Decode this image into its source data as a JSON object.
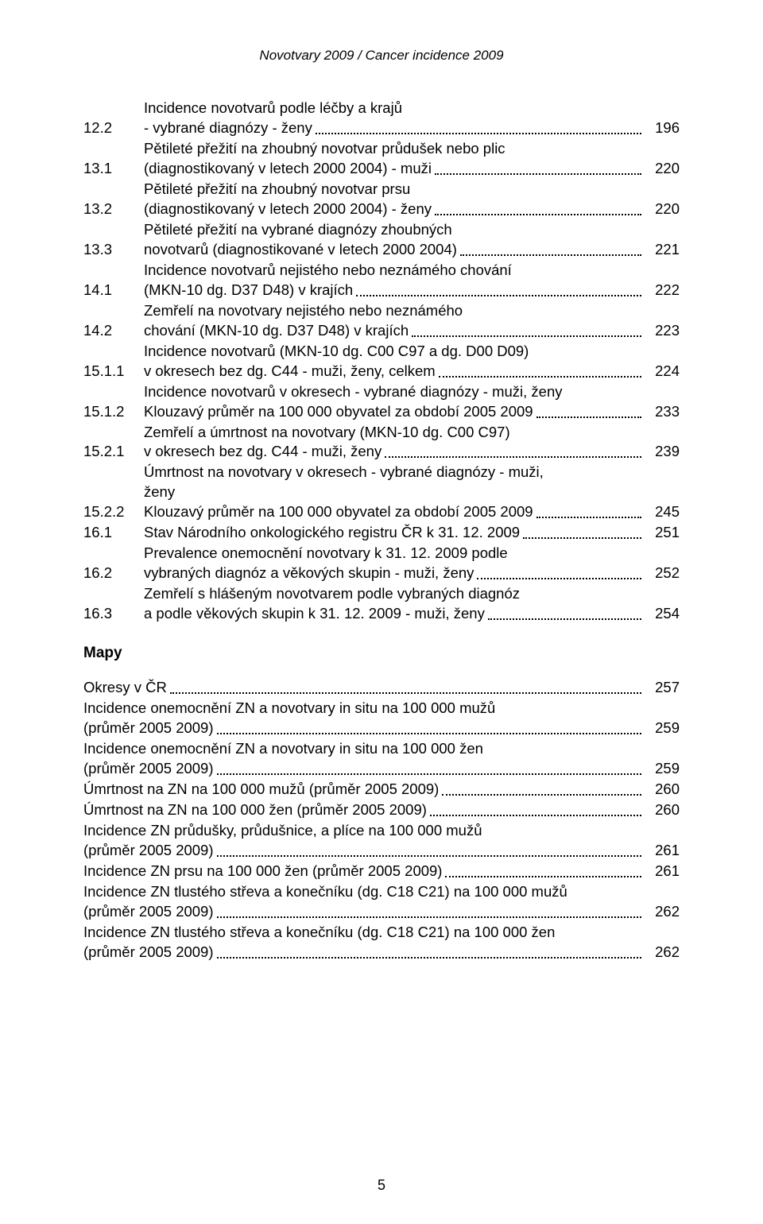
{
  "header_title": "Novotvary 2009  /  Cancer incidence 2009",
  "toc": [
    {
      "num": "12.2",
      "lines": [
        "Incidence novotvarů podle léčby a krajů"
      ],
      "last": "- vybrané diagnózy - ženy",
      "page": "196"
    },
    {
      "num": "13.1",
      "lines": [
        "Pětileté přežití na zhoubný novotvar průdušek nebo plic"
      ],
      "last": "(diagnostikovaný v letech 2000 2004) - muži",
      "page": "220"
    },
    {
      "num": "13.2",
      "lines": [
        "Pětileté přežití na zhoubný novotvar prsu"
      ],
      "last": "(diagnostikovaný v letech 2000 2004) - ženy",
      "page": "220"
    },
    {
      "num": "13.3",
      "lines": [
        "Pětileté přežití na vybrané diagnózy zhoubných"
      ],
      "last": "novotvarů (diagnostikované v letech 2000 2004)",
      "page": "221"
    },
    {
      "num": "14.1",
      "lines": [
        "Incidence novotvarů nejistého nebo neznámého chování"
      ],
      "last": "(MKN-10 dg. D37 D48) v krajích",
      "page": "222"
    },
    {
      "num": "14.2",
      "lines": [
        "Zemřelí na novotvary nejistého nebo neznámého"
      ],
      "last": "chování (MKN-10 dg. D37 D48) v krajích",
      "page": "223"
    },
    {
      "num": "15.1.1",
      "lines": [
        "Incidence novotvarů (MKN-10 dg. C00 C97 a dg. D00 D09)"
      ],
      "last": "v okresech bez dg. C44 - muži, ženy, celkem",
      "page": "224"
    },
    {
      "num": "15.1.2",
      "lines": [
        "Incidence novotvarů v okresech - vybrané diagnózy - muži, ženy"
      ],
      "last": "Klouzavý průměr na 100 000 obyvatel za období 2005 2009",
      "page": "233"
    },
    {
      "num": "15.2.1",
      "lines": [
        "Zemřelí a úmrtnost na novotvary (MKN-10 dg. C00 C97)"
      ],
      "last": "v okresech bez dg. C44 - muži, ženy",
      "page": "239"
    },
    {
      "num": "15.2.2",
      "lines": [
        "Úmrtnost na novotvary v okresech - vybrané diagnózy - muži,",
        "ženy"
      ],
      "last": "Klouzavý průměr na 100 000 obyvatel za období 2005 2009",
      "page": "245"
    },
    {
      "num": "16.1",
      "lines": [],
      "last": "Stav Národního onkologického registru ČR k 31. 12. 2009",
      "page": "251"
    },
    {
      "num": "16.2",
      "lines": [
        "Prevalence onemocnění novotvary k 31. 12. 2009 podle"
      ],
      "last": "vybraných diagnóz a věkových skupin - muži, ženy",
      "page": "252"
    },
    {
      "num": "16.3",
      "lines": [
        "Zemřelí s hlášeným novotvarem podle vybraných diagnóz"
      ],
      "last": "a podle věkových skupin k 31. 12. 2009 - muži, ženy",
      "page": "254"
    }
  ],
  "mapy_heading": "Mapy",
  "maps": [
    {
      "lines": [],
      "last": "Okresy v ČR",
      "page": "257"
    },
    {
      "lines": [
        "Incidence onemocnění ZN a novotvary in situ na 100 000 mužů"
      ],
      "last": "(průměr 2005 2009)",
      "page": "259"
    },
    {
      "lines": [
        "Incidence onemocnění ZN a novotvary in situ na 100 000 žen"
      ],
      "last": "(průměr 2005 2009)",
      "page": "259"
    },
    {
      "lines": [],
      "last": "Úmrtnost na ZN na 100 000 mužů (průměr 2005 2009)",
      "page": "260"
    },
    {
      "lines": [],
      "last": "Úmrtnost na ZN na 100 000 žen (průměr 2005 2009)",
      "page": "260"
    },
    {
      "lines": [
        "Incidence ZN průdušky, průdušnice, a plíce na 100 000 mužů"
      ],
      "last": "(průměr 2005 2009)",
      "page": "261"
    },
    {
      "lines": [],
      "last": "Incidence ZN prsu na 100 000 žen (průměr 2005 2009)",
      "page": "261"
    },
    {
      "lines": [
        "Incidence ZN tlustého střeva a konečníku (dg. C18 C21) na 100 000 mužů"
      ],
      "last": "(průměr 2005 2009)",
      "page": "262"
    },
    {
      "lines": [
        "Incidence ZN tlustého střeva a konečníku (dg. C18 C21) na 100 000 žen"
      ],
      "last": "(průměr 2005 2009)",
      "page": "262"
    }
  ],
  "footer_page": "5"
}
